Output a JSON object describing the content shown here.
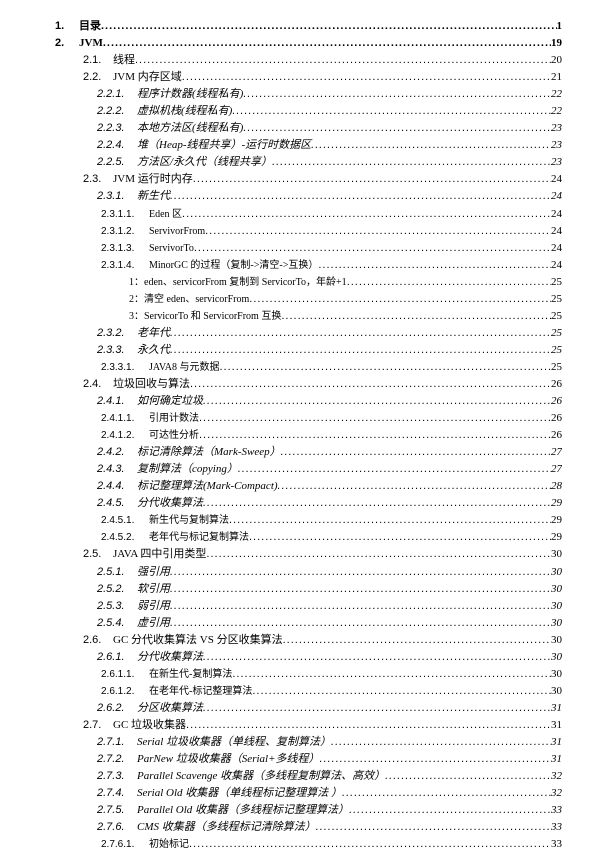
{
  "entries": [
    {
      "level": 0,
      "num": "1.",
      "title": "目录",
      "page": "1"
    },
    {
      "level": 0,
      "num": "2.",
      "title": "JVM",
      "page": "19"
    },
    {
      "level": 1,
      "num": "2.1.",
      "title": "线程",
      "page": "20"
    },
    {
      "level": 1,
      "num": "2.2.",
      "title": "JVM 内存区域",
      "page": "21"
    },
    {
      "level": 2,
      "num": "2.2.1.",
      "title": "程序计数器(线程私有)",
      "page": "22"
    },
    {
      "level": 2,
      "num": "2.2.2.",
      "title": "虚拟机栈(线程私有)",
      "page": "22"
    },
    {
      "level": 2,
      "num": "2.2.3.",
      "title": "本地方法区(线程私有)",
      "page": "23"
    },
    {
      "level": 2,
      "num": "2.2.4.",
      "title": "堆（Heap-线程共享）-运行时数据区",
      "page": "23"
    },
    {
      "level": 2,
      "num": "2.2.5.",
      "title": "方法区/永久代（线程共享）",
      "page": "23"
    },
    {
      "level": 1,
      "num": "2.3.",
      "title": "JVM 运行时内存",
      "page": "24"
    },
    {
      "level": 2,
      "num": "2.3.1.",
      "title": "新生代",
      "page": "24"
    },
    {
      "level": 3,
      "num": "2.3.1.1.",
      "title": "Eden 区",
      "page": "24"
    },
    {
      "level": 3,
      "num": "2.3.1.2.",
      "title": "ServivorFrom",
      "page": "24"
    },
    {
      "level": 3,
      "num": "2.3.1.3.",
      "title": "ServivorTo",
      "page": "24"
    },
    {
      "level": 3,
      "num": "2.3.1.4.",
      "title": "MinorGC 的过程（复制->清空->互换）",
      "page": "24"
    },
    {
      "level": "sub",
      "num": "",
      "title": "1：eden、servicorFrom 复制到 ServicorTo，年龄+1",
      "page": "25"
    },
    {
      "level": "sub",
      "num": "",
      "title": "2：清空 eden、servicorFrom",
      "page": "25"
    },
    {
      "level": "sub",
      "num": "",
      "title": "3：ServicorTo 和 ServicorFrom 互换",
      "page": "25"
    },
    {
      "level": 2,
      "num": "2.3.2.",
      "title": "老年代",
      "page": "25"
    },
    {
      "level": 2,
      "num": "2.3.3.",
      "title": "永久代",
      "page": "25"
    },
    {
      "level": 3,
      "num": "2.3.3.1.",
      "title": "JAVA8 与元数据",
      "page": "25"
    },
    {
      "level": 1,
      "num": "2.4.",
      "title": "垃圾回收与算法",
      "page": "26"
    },
    {
      "level": 2,
      "num": "2.4.1.",
      "title": "如何确定垃圾",
      "page": "26"
    },
    {
      "level": 3,
      "num": "2.4.1.1.",
      "title": "引用计数法",
      "page": "26"
    },
    {
      "level": 3,
      "num": "2.4.1.2.",
      "title": "可达性分析",
      "page": "26"
    },
    {
      "level": 2,
      "num": "2.4.2.",
      "title": "标记清除算法（Mark-Sweep）",
      "page": "27"
    },
    {
      "level": 2,
      "num": "2.4.3.",
      "title": "复制算法（copying）",
      "page": "27"
    },
    {
      "level": 2,
      "num": "2.4.4.",
      "title": "标记整理算法(Mark-Compact)",
      "page": "28"
    },
    {
      "level": 2,
      "num": "2.4.5.",
      "title": "分代收集算法",
      "page": "29"
    },
    {
      "level": 3,
      "num": "2.4.5.1.",
      "title": "新生代与复制算法",
      "page": "29"
    },
    {
      "level": 3,
      "num": "2.4.5.2.",
      "title": "老年代与标记复制算法",
      "page": "29"
    },
    {
      "level": 1,
      "num": "2.5.",
      "title": "JAVA 四中引用类型",
      "page": "30"
    },
    {
      "level": 2,
      "num": "2.5.1.",
      "title": "强引用",
      "page": "30"
    },
    {
      "level": 2,
      "num": "2.5.2.",
      "title": "软引用",
      "page": "30"
    },
    {
      "level": 2,
      "num": "2.5.3.",
      "title": "弱引用",
      "page": "30"
    },
    {
      "level": 2,
      "num": "2.5.4.",
      "title": "虚引用",
      "page": "30"
    },
    {
      "level": 1,
      "num": "2.6.",
      "title": "GC 分代收集算法 VS 分区收集算法",
      "page": "30"
    },
    {
      "level": 2,
      "num": "2.6.1.",
      "title": "分代收集算法",
      "page": "30"
    },
    {
      "level": 3,
      "num": "2.6.1.1.",
      "title": "在新生代-复制算法",
      "page": "30"
    },
    {
      "level": 3,
      "num": "2.6.1.2.",
      "title": "在老年代-标记整理算法",
      "page": "30"
    },
    {
      "level": 2,
      "num": "2.6.2.",
      "title": "分区收集算法",
      "page": "31"
    },
    {
      "level": 1,
      "num": "2.7.",
      "title": "GC 垃圾收集器",
      "page": "31"
    },
    {
      "level": 2,
      "num": "2.7.1.",
      "title": "Serial 垃圾收集器（单线程、复制算法）",
      "page": "31"
    },
    {
      "level": 2,
      "num": "2.7.2.",
      "title": "ParNew 垃圾收集器（Serial+多线程）",
      "page": "31"
    },
    {
      "level": 2,
      "num": "2.7.3.",
      "title": "Parallel Scavenge 收集器（多线程复制算法、高效）",
      "page": "32"
    },
    {
      "level": 2,
      "num": "2.7.4.",
      "title": "Serial Old 收集器（单线程标记整理算法 ）",
      "page": "32"
    },
    {
      "level": 2,
      "num": "2.7.5.",
      "title": "Parallel Old 收集器（多线程标记整理算法）",
      "page": "33"
    },
    {
      "level": 2,
      "num": "2.7.6.",
      "title": "CMS 收集器（多线程标记清除算法）",
      "page": "33"
    },
    {
      "level": 3,
      "num": "2.7.6.1.",
      "title": "初始标记",
      "page": "33"
    }
  ]
}
